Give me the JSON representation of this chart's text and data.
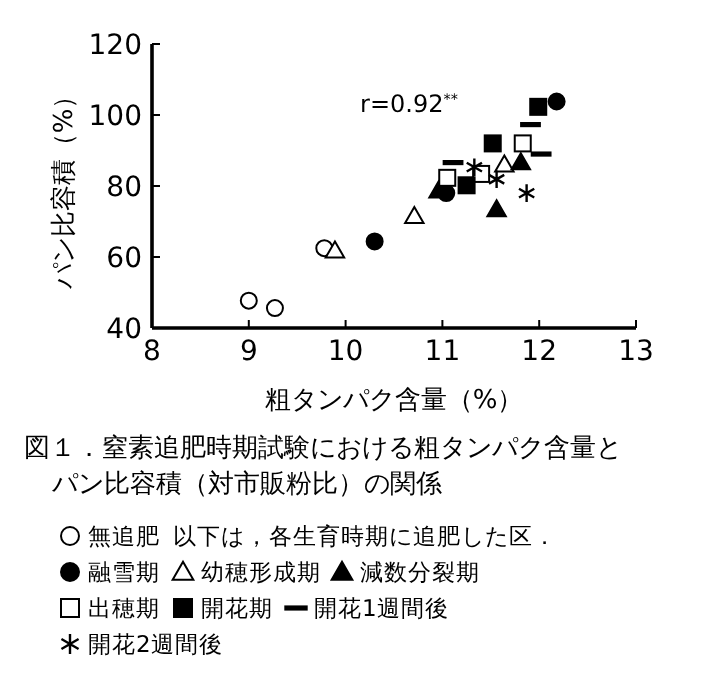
{
  "chart_data": {
    "type": "scatter",
    "title": "図１．窒素追肥時期試験における粗タンパク含量とパン比容積（対市販粉比）の関係",
    "xlabel": "粗タンパク含量（%）",
    "ylabel": "パン比容積（%）",
    "xlim": [
      8,
      13
    ],
    "ylim": [
      40,
      120
    ],
    "xticks": [
      8,
      9,
      10,
      11,
      12,
      13
    ],
    "yticks": [
      40,
      60,
      80,
      100,
      120
    ],
    "grid": false,
    "legend": "bottom",
    "annotations": [
      "r=0.92$^{**}$",
      "以下は，各生育時期に追肥した区．"
    ],
    "series": [
      {
        "name": "無追肥",
        "marker": "circle",
        "color": "#ffffff",
        "x": [
          9.0,
          9.27,
          9.78
        ],
        "values": [
          47.7,
          45.6,
          62.5
        ]
      },
      {
        "name": "融雪期",
        "marker": "circle",
        "color": "#000000",
        "x": [
          10.3,
          11.04,
          12.18
        ],
        "values": [
          64.4,
          78,
          103.8
        ]
      },
      {
        "name": "幼穂形成期",
        "marker": "triangle",
        "color": "#ffffff",
        "x": [
          9.89,
          10.71,
          11.64
        ],
        "values": [
          61.8,
          71.5,
          86
        ]
      },
      {
        "name": "減数分裂期",
        "marker": "triangle",
        "color": "#000000",
        "x": [
          10.96,
          11.56,
          11.81
        ],
        "values": [
          78.7,
          73.4,
          86.6
        ]
      },
      {
        "name": "出穂期",
        "marker": "square",
        "color": "#ffffff",
        "x": [
          11.05,
          11.4,
          11.83
        ],
        "values": [
          82.3,
          83.4,
          92
        ]
      },
      {
        "name": "開花期",
        "marker": "square",
        "color": "#000000",
        "x": [
          11.25,
          11.52,
          11.99
        ],
        "values": [
          80.2,
          92,
          102.3
        ]
      },
      {
        "name": "開花1週間後",
        "color": "#000000",
        "x": [
          11.11,
          11.91,
          12.02
        ],
        "values": [
          86.6,
          97.3,
          89
        ]
      },
      {
        "name": "開花2週間後",
        "marker": "cross",
        "color": "#000000",
        "x": [
          11.33,
          11.56,
          11.87
        ],
        "values": [
          85.3,
          81.9,
          78
        ]
      }
    ]
  }
}
